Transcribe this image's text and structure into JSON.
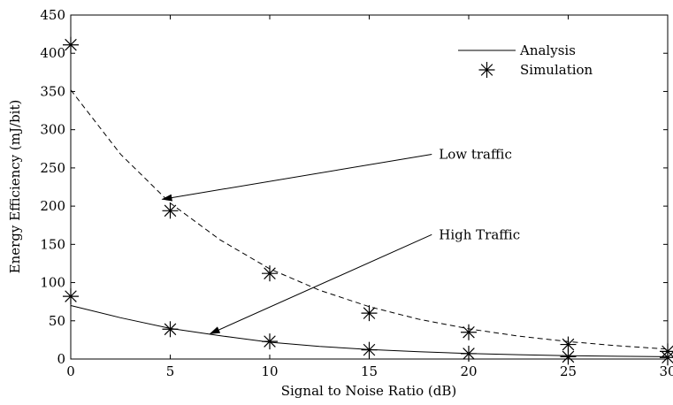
{
  "chart_data": {
    "type": "line",
    "title": "",
    "xlabel": "Signal to Noise Ratio (dB)",
    "ylabel": "Energy Efficiency (mJ/bit)",
    "xlim": [
      0,
      30
    ],
    "ylim": [
      0,
      450
    ],
    "xticks": [
      0,
      5,
      10,
      15,
      20,
      25,
      30
    ],
    "yticks": [
      0,
      50,
      100,
      150,
      200,
      250,
      300,
      350,
      400,
      450
    ],
    "grid": false,
    "legend": {
      "position": "top-right",
      "entries": [
        {
          "label": "Analysis",
          "style": "solid-line"
        },
        {
          "label": "Simulation",
          "style": "asterisk-marker"
        }
      ]
    },
    "series": [
      {
        "label": "Low traffic",
        "kind": "analysis",
        "line_style": "dashed",
        "x": [
          0,
          2.5,
          5,
          7.5,
          10,
          12.5,
          15,
          17.5,
          20,
          22.5,
          25,
          27.5,
          30
        ],
        "y": [
          352,
          268,
          204,
          156,
          118,
          90,
          68.5,
          52,
          39.5,
          30,
          22.8,
          17.3,
          13
        ]
      },
      {
        "label": "Low traffic",
        "kind": "simulation",
        "marker": "asterisk",
        "x": [
          0,
          5,
          10,
          15,
          20,
          25,
          30
        ],
        "y": [
          411,
          194,
          112,
          60,
          35,
          19,
          10
        ]
      },
      {
        "label": "High Traffic",
        "kind": "analysis",
        "line_style": "solid",
        "x": [
          0,
          2.5,
          5,
          7.5,
          10,
          12.5,
          15,
          17.5,
          20,
          22.5,
          25,
          27.5,
          30
        ],
        "y": [
          70,
          54,
          40,
          30.5,
          22,
          16.5,
          12.5,
          9.5,
          7.2,
          5.6,
          4.4,
          3.6,
          3
        ]
      },
      {
        "label": "High Traffic",
        "kind": "simulation",
        "marker": "asterisk",
        "x": [
          0,
          5,
          10,
          15,
          20,
          25,
          30
        ],
        "y": [
          82,
          39,
          23,
          12,
          7,
          3,
          2
        ]
      }
    ],
    "annotations": [
      {
        "text": "Low traffic",
        "text_at": [
          18.5,
          262
        ],
        "arrow_to": [
          4.6,
          209
        ]
      },
      {
        "text": "High Traffic",
        "text_at": [
          18.5,
          157
        ],
        "arrow_to": [
          7,
          33
        ]
      }
    ]
  }
}
